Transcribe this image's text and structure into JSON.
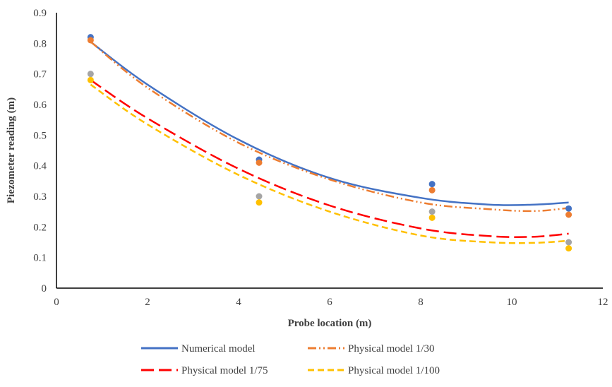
{
  "chart_data": {
    "type": "scatter",
    "title": "",
    "xlabel": "Probe location (m)",
    "ylabel": "Piezometer reading (m)",
    "xlim": [
      0,
      12
    ],
    "ylim": [
      0,
      0.9
    ],
    "x_ticks": [
      0,
      2,
      4,
      6,
      8,
      10,
      12
    ],
    "y_ticks": [
      0,
      0.1,
      0.2,
      0.3,
      0.4,
      0.5,
      0.6,
      0.7,
      0.8,
      0.9
    ],
    "grid": false,
    "legend_position": "bottom",
    "series": [
      {
        "name": "Numerical model",
        "color": "#4472C4",
        "dash": "solid",
        "points": [
          [
            0.75,
            0.82
          ],
          [
            4.45,
            0.42
          ],
          [
            8.25,
            0.34
          ],
          [
            11.25,
            0.26
          ]
        ],
        "trend": [
          [
            0.75,
            0.805
          ],
          [
            2,
            0.665
          ],
          [
            4,
            0.485
          ],
          [
            6,
            0.36
          ],
          [
            8,
            0.295
          ],
          [
            9.5,
            0.273
          ],
          [
            10.5,
            0.273
          ],
          [
            11.25,
            0.28
          ]
        ]
      },
      {
        "name": "Physical model 1/30",
        "color": "#ED7D31",
        "dash": "dash-dot-dot",
        "points": [
          [
            0.75,
            0.81
          ],
          [
            4.45,
            0.41
          ],
          [
            8.25,
            0.32
          ],
          [
            11.25,
            0.24
          ]
        ],
        "trend": [
          [
            0.75,
            0.805
          ],
          [
            2,
            0.655
          ],
          [
            4,
            0.475
          ],
          [
            6,
            0.355
          ],
          [
            8,
            0.28
          ],
          [
            9.5,
            0.258
          ],
          [
            10.5,
            0.252
          ],
          [
            11.25,
            0.262
          ]
        ]
      },
      {
        "name": "Physical model 1/75",
        "color": "#FF0000",
        "dash": "long-dash",
        "points": [
          [
            0.75,
            0.7
          ],
          [
            4.45,
            0.3
          ],
          [
            8.25,
            0.25
          ],
          [
            11.25,
            0.15
          ]
        ],
        "trend": [
          [
            0.75,
            0.68
          ],
          [
            2,
            0.555
          ],
          [
            4,
            0.39
          ],
          [
            6,
            0.27
          ],
          [
            8,
            0.195
          ],
          [
            9.5,
            0.17
          ],
          [
            10.5,
            0.168
          ],
          [
            11.25,
            0.178
          ]
        ]
      },
      {
        "name": "Physical model 1/100",
        "color": "#FFC000",
        "dash": "dash",
        "points": [
          [
            0.75,
            0.68
          ],
          [
            4.45,
            0.28
          ],
          [
            8.25,
            0.23
          ],
          [
            11.25,
            0.13
          ]
        ],
        "trend": [
          [
            0.75,
            0.665
          ],
          [
            2,
            0.535
          ],
          [
            4,
            0.37
          ],
          [
            6,
            0.25
          ],
          [
            8,
            0.172
          ],
          [
            9.5,
            0.15
          ],
          [
            10.5,
            0.148
          ],
          [
            11.25,
            0.155
          ]
        ]
      }
    ],
    "marker_colors": [
      "#4472C4",
      "#ED7D31",
      "#A5A5A5",
      "#FFC000"
    ]
  }
}
